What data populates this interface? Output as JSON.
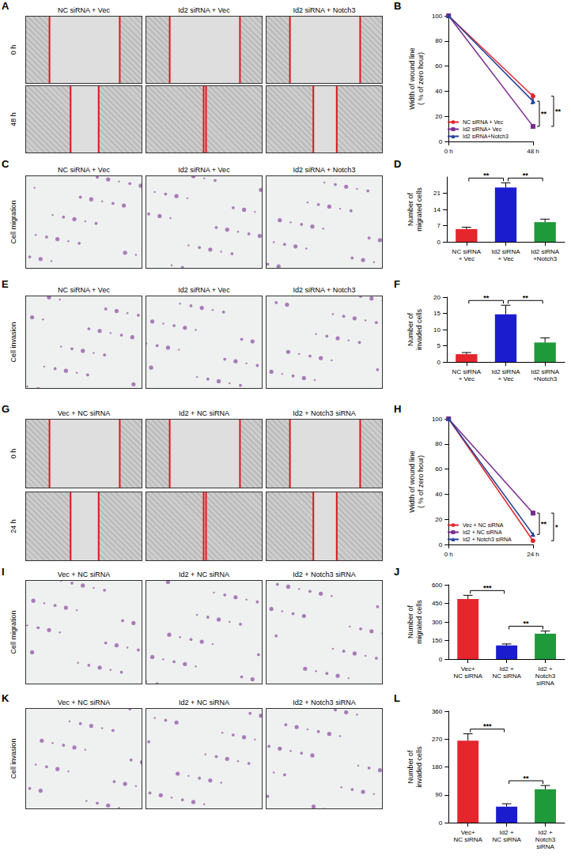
{
  "panels": [
    {
      "panel": "A",
      "columns": [
        "NC siRNA + Vec",
        "Id2 siRNA + Vec",
        "Id2 siRNA + Notch3"
      ],
      "rows": [
        "0 h",
        "48 h"
      ]
    },
    {
      "panel": "C",
      "columns": [
        "NC siRNA + Vec",
        "Id2 siRNA + Vec",
        "Id2 siRNA + Notch3"
      ],
      "rows": [
        "Cell migration"
      ]
    },
    {
      "panel": "E",
      "columns": [
        "NC siRNA + Vec",
        "Id2 siRNA + Vec",
        "Id2 siRNA + Notch3"
      ],
      "rows": [
        "Cell invasion"
      ]
    },
    {
      "panel": "G",
      "columns": [
        "Vec + NC siRNA",
        "Id2 + NC siRNA",
        "Id2 + Notch3 siRNA"
      ],
      "rows": [
        "0 h",
        "24 h"
      ]
    },
    {
      "panel": "I",
      "columns": [
        "Vec + NC siRNA",
        "Id2 + NC siRNA",
        "Id2 + Notch3 siRNA"
      ],
      "rows": [
        "Cell migration"
      ]
    },
    {
      "panel": "K",
      "columns": [
        "Vec + NC siRNA",
        "Id2 + NC siRNA",
        "Id2 + Notch3 siRNA"
      ],
      "rows": [
        "Cell invasion"
      ]
    }
  ],
  "chart_data": [
    {
      "panel": "B",
      "type": "line",
      "categories": [
        "0 h",
        "48 h"
      ],
      "ylabel": "Width of wound line\n( % of zero hour)",
      "ylim": [
        0,
        100
      ],
      "yticks": [
        0,
        20,
        40,
        60,
        80,
        100
      ],
      "legend": "lower left",
      "series": [
        {
          "name": "NC siRNA + Vec",
          "color": "#e5262c",
          "marker": "circle",
          "values": [
            100,
            36
          ],
          "errors": [
            0,
            2
          ]
        },
        {
          "name": "Id2 siRNA+ Vec",
          "color": "#7a2a90",
          "marker": "square",
          "values": [
            100,
            12
          ],
          "errors": [
            0,
            1.5
          ]
        },
        {
          "name": "Id2 siRNA+Notch3",
          "color": "#24409a",
          "marker": "triangle",
          "values": [
            100,
            32
          ],
          "errors": [
            0,
            2
          ]
        }
      ],
      "significance": [
        {
          "from": 1,
          "to": 2,
          "label": "**"
        },
        {
          "from": 1,
          "to": 0,
          "label": "**"
        }
      ]
    },
    {
      "panel": "D",
      "type": "bar",
      "categories": [
        "NC siRNA\n+ Vec",
        "Id2 siRNA\n+ Vec",
        "Id2 siRNA\n+Notch3"
      ],
      "ylabel": "Number of\nmigrated cells",
      "ylim": [
        0,
        28
      ],
      "yticks": [
        0,
        7,
        14,
        21
      ],
      "values": [
        5.5,
        23.5,
        8.5
      ],
      "errors": [
        0.8,
        2,
        1.3
      ],
      "colors": [
        "#e5262c",
        "#1c1ccf",
        "#1f9a3a"
      ],
      "significance": [
        {
          "from": 0,
          "to": 1,
          "label": "**"
        },
        {
          "from": 1,
          "to": 2,
          "label": "**"
        }
      ]
    },
    {
      "panel": "F",
      "type": "bar",
      "categories": [
        "NC siRNA\n+ Vec",
        "Id2 siRNA\n+ Vec",
        "Id2 siRNA\n+Notch3"
      ],
      "ylabel": "Number of\ninvaded cells",
      "ylim": [
        0,
        20
      ],
      "yticks": [
        0,
        5,
        10,
        15,
        20
      ],
      "values": [
        2.4,
        14.7,
        6
      ],
      "errors": [
        0.5,
        2.8,
        1.4
      ],
      "colors": [
        "#e5262c",
        "#1c1ccf",
        "#1f9a3a"
      ],
      "significance": [
        {
          "from": 0,
          "to": 1,
          "label": "**"
        },
        {
          "from": 1,
          "to": 2,
          "label": "**"
        }
      ]
    },
    {
      "panel": "H",
      "type": "line",
      "categories": [
        "0 h",
        "24 h"
      ],
      "ylabel": "Width of wound line\n( % of zero hour)",
      "ylim": [
        0,
        100
      ],
      "yticks": [
        0,
        20,
        40,
        60,
        80,
        100
      ],
      "legend": "lower left",
      "series": [
        {
          "name": "Vec + NC siRNA",
          "color": "#e5262c",
          "marker": "circle",
          "values": [
            100,
            3
          ],
          "errors": [
            0,
            1
          ]
        },
        {
          "name": "Id2 + NC siRNA",
          "color": "#7a2a90",
          "marker": "square",
          "values": [
            100,
            25
          ],
          "errors": [
            0,
            1.5
          ]
        },
        {
          "name": "Id2 + Notch3 siRNA",
          "color": "#24409a",
          "marker": "triangle",
          "values": [
            100,
            8
          ],
          "errors": [
            0,
            1
          ]
        }
      ],
      "significance": [
        {
          "from": 1,
          "to": 2,
          "label": "**"
        },
        {
          "from": 1,
          "to": 0,
          "label": "*"
        }
      ]
    },
    {
      "panel": "J",
      "type": "bar",
      "categories": [
        "Vec+\nNC siRNA",
        "Id2 +\nNC siRNA",
        "Id2 +\nNotch3\nsiRNA"
      ],
      "ylabel": "Number of\nmigrated cells",
      "ylim": [
        0,
        600
      ],
      "yticks": [
        0,
        150,
        300,
        450,
        600
      ],
      "values": [
        485,
        110,
        205
      ],
      "errors": [
        30,
        12,
        22
      ],
      "colors": [
        "#e5262c",
        "#1c1ccf",
        "#1f9a3a"
      ],
      "significance": [
        {
          "from": 0,
          "to": 1,
          "label": "***"
        },
        {
          "from": 1,
          "to": 2,
          "label": "**"
        }
      ]
    },
    {
      "panel": "L",
      "type": "bar",
      "categories": [
        "Vec+\nNC siRNA",
        "Id2 +\nNC siRNA",
        "Id2 +\nNotch3\nsiRNA"
      ],
      "ylabel": "Number of\ninvaded cells",
      "ylim": [
        0,
        360
      ],
      "yticks": [
        0,
        90,
        180,
        270,
        360
      ],
      "values": [
        265,
        52,
        108
      ],
      "errors": [
        22,
        9,
        12
      ],
      "colors": [
        "#e5262c",
        "#1c1ccf",
        "#1f9a3a"
      ],
      "significance": [
        {
          "from": 0,
          "to": 1,
          "label": "***"
        },
        {
          "from": 1,
          "to": 2,
          "label": "**"
        }
      ]
    }
  ]
}
